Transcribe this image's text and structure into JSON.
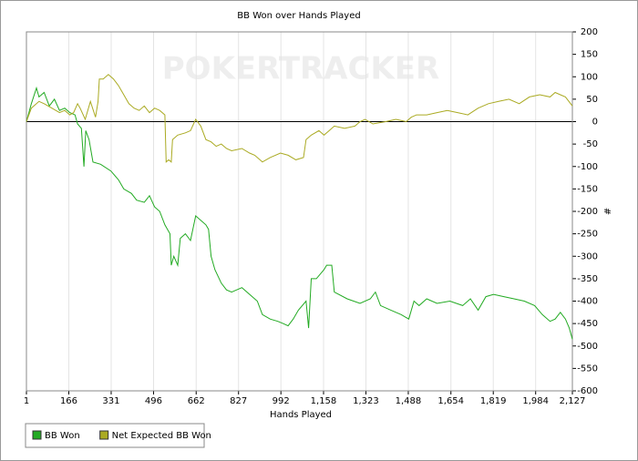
{
  "chart_data": {
    "type": "line",
    "title": "BB Won over Hands Played",
    "watermark": "POKERTRACKER",
    "x_label": "Hands Played",
    "y_label": "#",
    "xlim": [
      1,
      2127
    ],
    "ylim": [
      -600,
      200
    ],
    "xticks": [
      1,
      166,
      331,
      496,
      662,
      827,
      992,
      {
        "value": 1158,
        "label": "1,158"
      },
      {
        "value": 1323,
        "label": "1,323"
      },
      {
        "value": 1488,
        "label": "1,488"
      },
      {
        "value": 1654,
        "label": "1,654"
      },
      {
        "value": 1819,
        "label": "1,819"
      },
      {
        "value": 1984,
        "label": "1,984"
      },
      {
        "value": 2127,
        "label": "2,127"
      }
    ],
    "yticks": [
      200,
      150,
      100,
      50,
      0,
      -50,
      -100,
      -150,
      -200,
      -250,
      -300,
      -350,
      -400,
      -450,
      -500,
      -550,
      -600
    ],
    "grid": true,
    "series": [
      {
        "name": "BB Won",
        "color": "#22aa22",
        "x": [
          1,
          20,
          40,
          50,
          70,
          90,
          110,
          130,
          150,
          170,
          190,
          200,
          215,
          225,
          232,
          245,
          260,
          290,
          330,
          360,
          380,
          410,
          430,
          460,
          480,
          500,
          520,
          540,
          560,
          565,
          575,
          590,
          600,
          620,
          640,
          660,
          680,
          700,
          710,
          720,
          735,
          760,
          780,
          800,
          840,
          880,
          900,
          920,
          950,
          980,
          1000,
          1020,
          1040,
          1060,
          1090,
          1100,
          1110,
          1130,
          1160,
          1170,
          1190,
          1200,
          1250,
          1300,
          1340,
          1360,
          1380,
          1420,
          1460,
          1490,
          1510,
          1530,
          1560,
          1600,
          1650,
          1700,
          1730,
          1760,
          1790,
          1820,
          1860,
          1900,
          1940,
          1980,
          2010,
          2040,
          2060,
          2080,
          2100,
          2115,
          2127
        ],
        "values": [
          0,
          40,
          75,
          55,
          65,
          35,
          50,
          25,
          30,
          20,
          15,
          -5,
          -15,
          -100,
          -20,
          -40,
          -90,
          -95,
          -110,
          -130,
          -150,
          -160,
          -175,
          -180,
          -165,
          -190,
          -200,
          -230,
          -250,
          -320,
          -300,
          -320,
          -260,
          -250,
          -265,
          -210,
          -220,
          -230,
          -240,
          -300,
          -330,
          -360,
          -375,
          -380,
          -370,
          -390,
          -400,
          -430,
          -440,
          -445,
          -450,
          -455,
          -440,
          -420,
          -400,
          -460,
          -350,
          -350,
          -330,
          -320,
          -320,
          -380,
          -395,
          -405,
          -395,
          -380,
          -410,
          -420,
          -430,
          -440,
          -400,
          -410,
          -395,
          -405,
          -400,
          -410,
          -395,
          -420,
          -390,
          -385,
          -390,
          -395,
          -400,
          -410,
          -430,
          -445,
          -440,
          -425,
          -440,
          -460,
          -485
        ]
      },
      {
        "name": "Net Expected BB Won",
        "color": "#aaaa22",
        "x": [
          1,
          20,
          50,
          70,
          100,
          130,
          150,
          170,
          185,
          200,
          210,
          230,
          250,
          270,
          280,
          285,
          300,
          320,
          340,
          360,
          380,
          400,
          420,
          440,
          460,
          480,
          500,
          520,
          540,
          545,
          555,
          565,
          570,
          590,
          620,
          640,
          660,
          680,
          700,
          720,
          740,
          760,
          780,
          800,
          840,
          870,
          890,
          920,
          950,
          990,
          1020,
          1050,
          1080,
          1090,
          1110,
          1140,
          1160,
          1180,
          1200,
          1240,
          1280,
          1300,
          1320,
          1350,
          1400,
          1440,
          1480,
          1500,
          1520,
          1560,
          1600,
          1640,
          1680,
          1720,
          1760,
          1800,
          1840,
          1880,
          1920,
          1960,
          2000,
          2040,
          2060,
          2080,
          2100,
          2127
        ],
        "values": [
          0,
          30,
          45,
          40,
          30,
          20,
          25,
          15,
          20,
          40,
          30,
          5,
          45,
          10,
          45,
          95,
          95,
          105,
          95,
          80,
          60,
          40,
          30,
          25,
          35,
          20,
          30,
          25,
          15,
          -90,
          -85,
          -90,
          -40,
          -30,
          -25,
          -20,
          5,
          -10,
          -40,
          -45,
          -55,
          -50,
          -60,
          -65,
          -60,
          -70,
          -75,
          -90,
          -80,
          -70,
          -75,
          -85,
          -80,
          -40,
          -30,
          -20,
          -30,
          -20,
          -10,
          -15,
          -10,
          0,
          5,
          -5,
          0,
          5,
          0,
          10,
          15,
          15,
          20,
          25,
          20,
          15,
          30,
          40,
          45,
          50,
          40,
          55,
          60,
          55,
          65,
          60,
          55,
          35
        ]
      }
    ]
  }
}
